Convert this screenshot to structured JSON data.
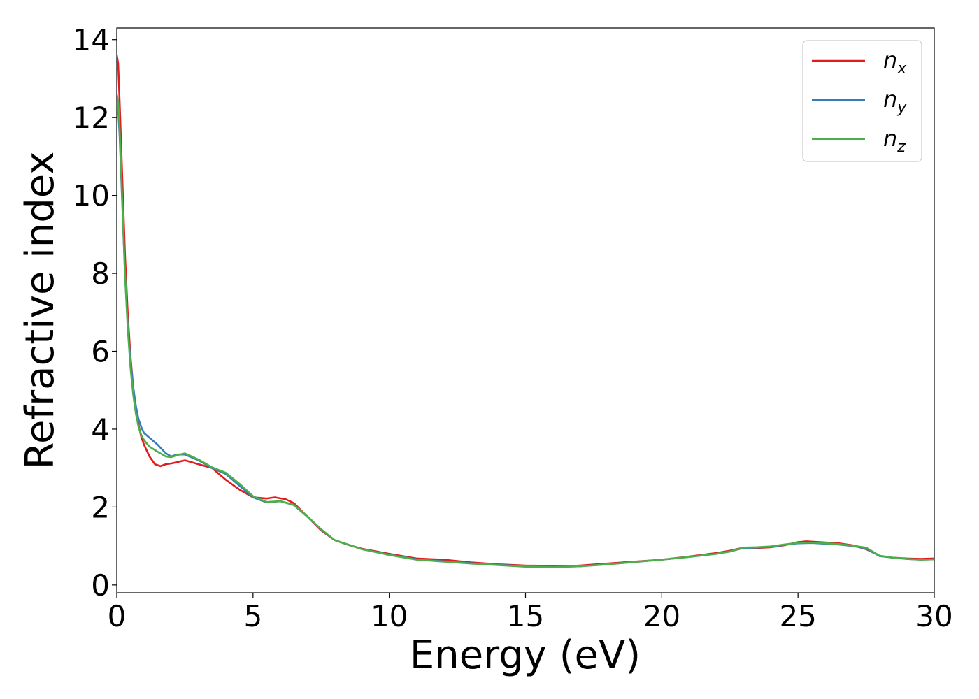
{
  "chart_data": {
    "type": "line",
    "title": "",
    "xlabel": "Energy (eV)",
    "ylabel": "Refractive index",
    "xlim": [
      0,
      30
    ],
    "ylim": [
      -0.2,
      14.3
    ],
    "xticks": [
      0,
      5,
      10,
      15,
      20,
      25,
      30
    ],
    "yticks": [
      0,
      2,
      4,
      6,
      8,
      10,
      12,
      14
    ],
    "grid": false,
    "legend_position": "top-right",
    "series": [
      {
        "name": "n",
        "subscript": "x",
        "color": "#e41a1c",
        "x": [
          0,
          0.05,
          0.1,
          0.2,
          0.3,
          0.4,
          0.5,
          0.6,
          0.7,
          0.8,
          0.9,
          1.0,
          1.2,
          1.4,
          1.6,
          1.8,
          2.0,
          2.2,
          2.5,
          3.0,
          3.5,
          4.0,
          4.5,
          5.0,
          5.5,
          5.8,
          6.2,
          6.5,
          7.0,
          7.5,
          8.0,
          8.5,
          9.0,
          10.0,
          11.0,
          12.0,
          13.0,
          14.0,
          15.0,
          16.0,
          16.5,
          17.0,
          18.0,
          19.0,
          20.0,
          21.0,
          22.0,
          22.5,
          23.0,
          23.5,
          24.0,
          24.5,
          25.0,
          25.3,
          25.8,
          26.5,
          27.0,
          27.5,
          28.0,
          28.5,
          29.0,
          29.5,
          30.0
        ],
        "y": [
          13.6,
          13.4,
          12.5,
          10.5,
          8.5,
          7.0,
          5.9,
          5.1,
          4.5,
          4.1,
          3.8,
          3.6,
          3.3,
          3.1,
          3.05,
          3.1,
          3.12,
          3.15,
          3.2,
          3.1,
          3.0,
          2.7,
          2.45,
          2.25,
          2.22,
          2.25,
          2.2,
          2.1,
          1.75,
          1.4,
          1.15,
          1.03,
          0.93,
          0.8,
          0.68,
          0.65,
          0.58,
          0.53,
          0.5,
          0.49,
          0.48,
          0.5,
          0.55,
          0.6,
          0.65,
          0.73,
          0.82,
          0.88,
          0.96,
          0.95,
          0.97,
          1.02,
          1.1,
          1.12,
          1.1,
          1.07,
          1.02,
          0.92,
          0.75,
          0.7,
          0.68,
          0.67,
          0.68
        ]
      },
      {
        "name": "n",
        "subscript": "y",
        "color": "#377eb8",
        "x": [
          0,
          0.05,
          0.1,
          0.2,
          0.3,
          0.4,
          0.5,
          0.6,
          0.7,
          0.8,
          0.9,
          1.0,
          1.2,
          1.5,
          1.8,
          2.0,
          2.2,
          2.5,
          3.0,
          3.5,
          4.0,
          4.5,
          5.0,
          5.5,
          6.0,
          6.5,
          7.0,
          7.5,
          8.0,
          9.0,
          10.0,
          11.0,
          12.0,
          13.0,
          14.0,
          15.0,
          16.0,
          17.0,
          18.0,
          19.0,
          20.0,
          21.0,
          22.0,
          22.5,
          23.0,
          23.5,
          24.0,
          24.5,
          25.0,
          25.5,
          26.0,
          26.5,
          27.0,
          27.5,
          28.0,
          28.5,
          29.0,
          29.5,
          30.0
        ],
        "y": [
          12.4,
          12.2,
          11.6,
          9.8,
          8.0,
          6.7,
          5.8,
          5.1,
          4.6,
          4.25,
          4.05,
          3.9,
          3.78,
          3.6,
          3.38,
          3.3,
          3.35,
          3.35,
          3.2,
          3.0,
          2.85,
          2.55,
          2.25,
          2.12,
          2.15,
          2.05,
          1.75,
          1.42,
          1.15,
          0.92,
          0.78,
          0.66,
          0.61,
          0.56,
          0.52,
          0.48,
          0.46,
          0.48,
          0.53,
          0.59,
          0.65,
          0.72,
          0.8,
          0.86,
          0.95,
          0.96,
          0.98,
          1.03,
          1.07,
          1.08,
          1.06,
          1.04,
          1.0,
          0.94,
          0.74,
          0.7,
          0.67,
          0.65,
          0.66
        ]
      },
      {
        "name": "n",
        "subscript": "z",
        "color": "#4daf4a",
        "x": [
          0,
          0.05,
          0.1,
          0.2,
          0.3,
          0.4,
          0.5,
          0.6,
          0.7,
          0.8,
          0.9,
          1.0,
          1.2,
          1.5,
          1.8,
          2.0,
          2.2,
          2.5,
          3.0,
          3.5,
          4.0,
          4.5,
          5.0,
          5.5,
          6.0,
          6.5,
          7.0,
          7.5,
          8.0,
          9.0,
          10.0,
          11.0,
          12.0,
          13.0,
          14.0,
          15.0,
          16.0,
          17.0,
          18.0,
          19.0,
          20.0,
          21.0,
          22.0,
          22.5,
          23.0,
          23.5,
          24.0,
          24.5,
          25.0,
          25.5,
          26.0,
          26.5,
          27.0,
          27.5,
          28.0,
          28.5,
          29.0,
          29.5,
          30.0
        ],
        "y": [
          12.6,
          12.4,
          11.8,
          9.9,
          8.0,
          6.6,
          5.6,
          4.9,
          4.4,
          4.05,
          3.85,
          3.72,
          3.55,
          3.42,
          3.3,
          3.28,
          3.33,
          3.38,
          3.22,
          3.02,
          2.88,
          2.6,
          2.28,
          2.13,
          2.15,
          2.06,
          1.76,
          1.43,
          1.15,
          0.92,
          0.77,
          0.65,
          0.6,
          0.55,
          0.51,
          0.47,
          0.46,
          0.48,
          0.53,
          0.59,
          0.65,
          0.72,
          0.8,
          0.86,
          0.96,
          0.97,
          0.99,
          1.04,
          1.08,
          1.09,
          1.07,
          1.05,
          1.01,
          0.96,
          0.75,
          0.7,
          0.67,
          0.65,
          0.66
        ]
      }
    ]
  }
}
